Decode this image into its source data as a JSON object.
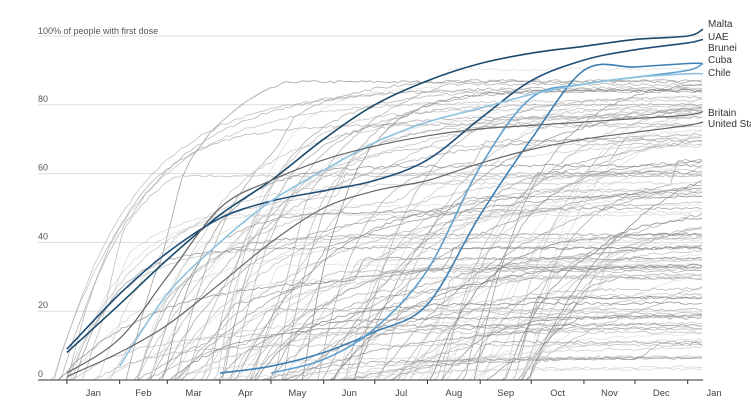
{
  "chart_data": {
    "type": "line",
    "ylabel": "100% of people with first dose",
    "ylim": [
      0,
      100
    ],
    "yticks": [
      0,
      20,
      40,
      60,
      80
    ],
    "xticks": [
      "Jan",
      "Feb",
      "Mar",
      "Apr",
      "May",
      "Jun",
      "Jul",
      "Aug",
      "Sep",
      "Oct",
      "Nov",
      "Dec",
      "Jan"
    ],
    "x": [
      "2020-12-15",
      "2021-01-01",
      "2021-02-01",
      "2021-03-01",
      "2021-04-01",
      "2021-05-01",
      "2021-06-01",
      "2021-07-01",
      "2021-08-01",
      "2021-09-01",
      "2021-10-01",
      "2021-11-01",
      "2021-12-01",
      "2022-01-01",
      "2022-01-10"
    ],
    "grid": true,
    "colors": {
      "highlight_dark": "#1b4a6b",
      "highlight_mid": "#2e6a9a",
      "highlight_light": "#8fc3e0",
      "background_line": "#999999",
      "grid": "#dddddd"
    },
    "series": [
      {
        "name": "Malta",
        "color": "#1b4a6b",
        "values": [
          null,
          8,
          22,
          35,
          48,
          58,
          70,
          80,
          87,
          92,
          95,
          97,
          99,
          100,
          102
        ]
      },
      {
        "name": "UAE",
        "color": "#1f4e79",
        "values": [
          null,
          9,
          25,
          37,
          47,
          52,
          55,
          58,
          64,
          76,
          87,
          93,
          96,
          98,
          99
        ]
      },
      {
        "name": "Brunei",
        "color": "#3d7fb3",
        "values": [
          null,
          null,
          null,
          null,
          2,
          4,
          8,
          14,
          22,
          48,
          70,
          90,
          91,
          92,
          92
        ]
      },
      {
        "name": "Cuba",
        "color": "#5f9fcd",
        "values": [
          null,
          null,
          null,
          null,
          null,
          2,
          6,
          15,
          32,
          62,
          82,
          86,
          88,
          90,
          92
        ]
      },
      {
        "name": "Chile",
        "color": "#8fc3e0",
        "values": [
          null,
          null,
          4,
          25,
          40,
          52,
          61,
          69,
          75,
          79,
          83,
          86,
          88,
          89,
          89
        ]
      },
      {
        "name": "Britain",
        "values": [
          null,
          2,
          12,
          30,
          50,
          58,
          64,
          68,
          71,
          73,
          74,
          75,
          76,
          77,
          78
        ]
      },
      {
        "name": "United States",
        "values": [
          null,
          1,
          8,
          16,
          28,
          40,
          50,
          55,
          58,
          63,
          67,
          70,
          72,
          74,
          75
        ]
      }
    ],
    "labels": [
      "Malta",
      "UAE",
      "Brunei",
      "Cuba",
      "Chile",
      "Britain",
      "United States"
    ]
  }
}
